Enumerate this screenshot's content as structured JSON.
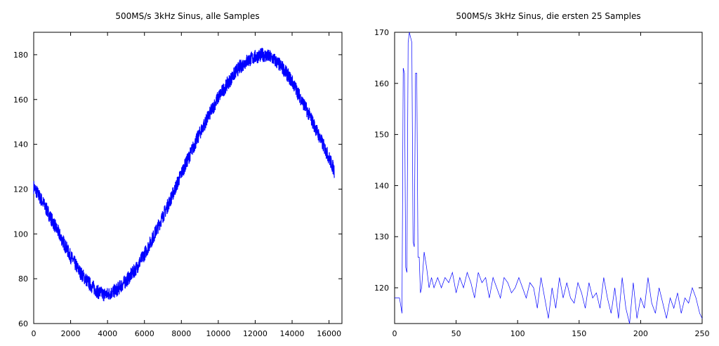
{
  "chart_data": [
    {
      "type": "line",
      "title": "500MS/s 3kHz Sinus, alle Samples",
      "xlabel": "",
      "ylabel": "",
      "xlim": [
        0,
        16700
      ],
      "ylim": [
        60,
        190
      ],
      "x_ticks": [
        0,
        2000,
        4000,
        6000,
        8000,
        10000,
        12000,
        14000,
        16000
      ],
      "y_ticks": [
        60,
        80,
        100,
        120,
        140,
        160,
        180
      ],
      "grid": false,
      "series": [
        {
          "color": "#0000ff",
          "x": [
            0,
            500,
            1000,
            1500,
            2000,
            2500,
            3000,
            3500,
            3800,
            4000,
            4500,
            5000,
            5500,
            6000,
            6500,
            7000,
            7500,
            8000,
            8500,
            9000,
            9500,
            10000,
            10500,
            11000,
            11500,
            12000,
            12400,
            12800,
            13000,
            13500,
            14000,
            14500,
            15000,
            15500,
            16000,
            16300
          ],
          "y": [
            121,
            114,
            106,
            98,
            90,
            83,
            78,
            74,
            73,
            73,
            75,
            79,
            84,
            91,
            99,
            108,
            117,
            127,
            136,
            145,
            153,
            161,
            167,
            173,
            177,
            179,
            180,
            179,
            178,
            174,
            168,
            160,
            152,
            143,
            134,
            128
          ]
        }
      ]
    },
    {
      "type": "line",
      "title": "500MS/s 3kHz Sinus, die ersten 25 Samples",
      "xlabel": "",
      "ylabel": "",
      "xlim": [
        0,
        250
      ],
      "ylim": [
        113,
        170
      ],
      "x_ticks": [
        0,
        50,
        100,
        150,
        200,
        250
      ],
      "y_ticks": [
        120,
        130,
        140,
        150,
        160,
        170
      ],
      "grid": false,
      "series": [
        {
          "color": "#0000ff",
          "x": [
            0,
            2,
            4,
            6,
            7,
            8,
            9,
            10,
            11,
            12,
            13,
            14,
            15,
            16,
            17,
            18,
            19,
            20,
            21,
            22,
            24,
            26,
            28,
            30,
            32,
            35,
            38,
            41,
            44,
            47,
            50,
            53,
            56,
            59,
            62,
            65,
            68,
            71,
            74,
            77,
            80,
            83,
            86,
            89,
            92,
            95,
            98,
            101,
            104,
            107,
            110,
            113,
            116,
            119,
            122,
            125,
            128,
            131,
            134,
            137,
            140,
            143,
            146,
            149,
            152,
            155,
            158,
            161,
            164,
            167,
            170,
            173,
            176,
            179,
            182,
            185,
            188,
            191,
            194,
            197,
            200,
            203,
            206,
            209,
            212,
            215,
            218,
            221,
            224,
            227,
            230,
            233,
            236,
            239,
            242,
            245,
            248,
            250
          ],
          "y": [
            118,
            118,
            118,
            115,
            163,
            162,
            124,
            123,
            168,
            170,
            169,
            168,
            129,
            128,
            162,
            162,
            126,
            126,
            119,
            120,
            127,
            124,
            120,
            122,
            120,
            122,
            120,
            122,
            121,
            123,
            119,
            122,
            120,
            123,
            121,
            118,
            123,
            121,
            122,
            118,
            122,
            120,
            118,
            122,
            121,
            119,
            120,
            122,
            120,
            118,
            121,
            120,
            116,
            122,
            118,
            114,
            120,
            116,
            122,
            118,
            121,
            118,
            117,
            121,
            119,
            116,
            121,
            118,
            119,
            116,
            122,
            118,
            115,
            120,
            114,
            122,
            116,
            113,
            121,
            114,
            118,
            116,
            122,
            117,
            115,
            120,
            117,
            114,
            118,
            116,
            119,
            115,
            118,
            117,
            120,
            118,
            115,
            114
          ]
        }
      ]
    }
  ]
}
